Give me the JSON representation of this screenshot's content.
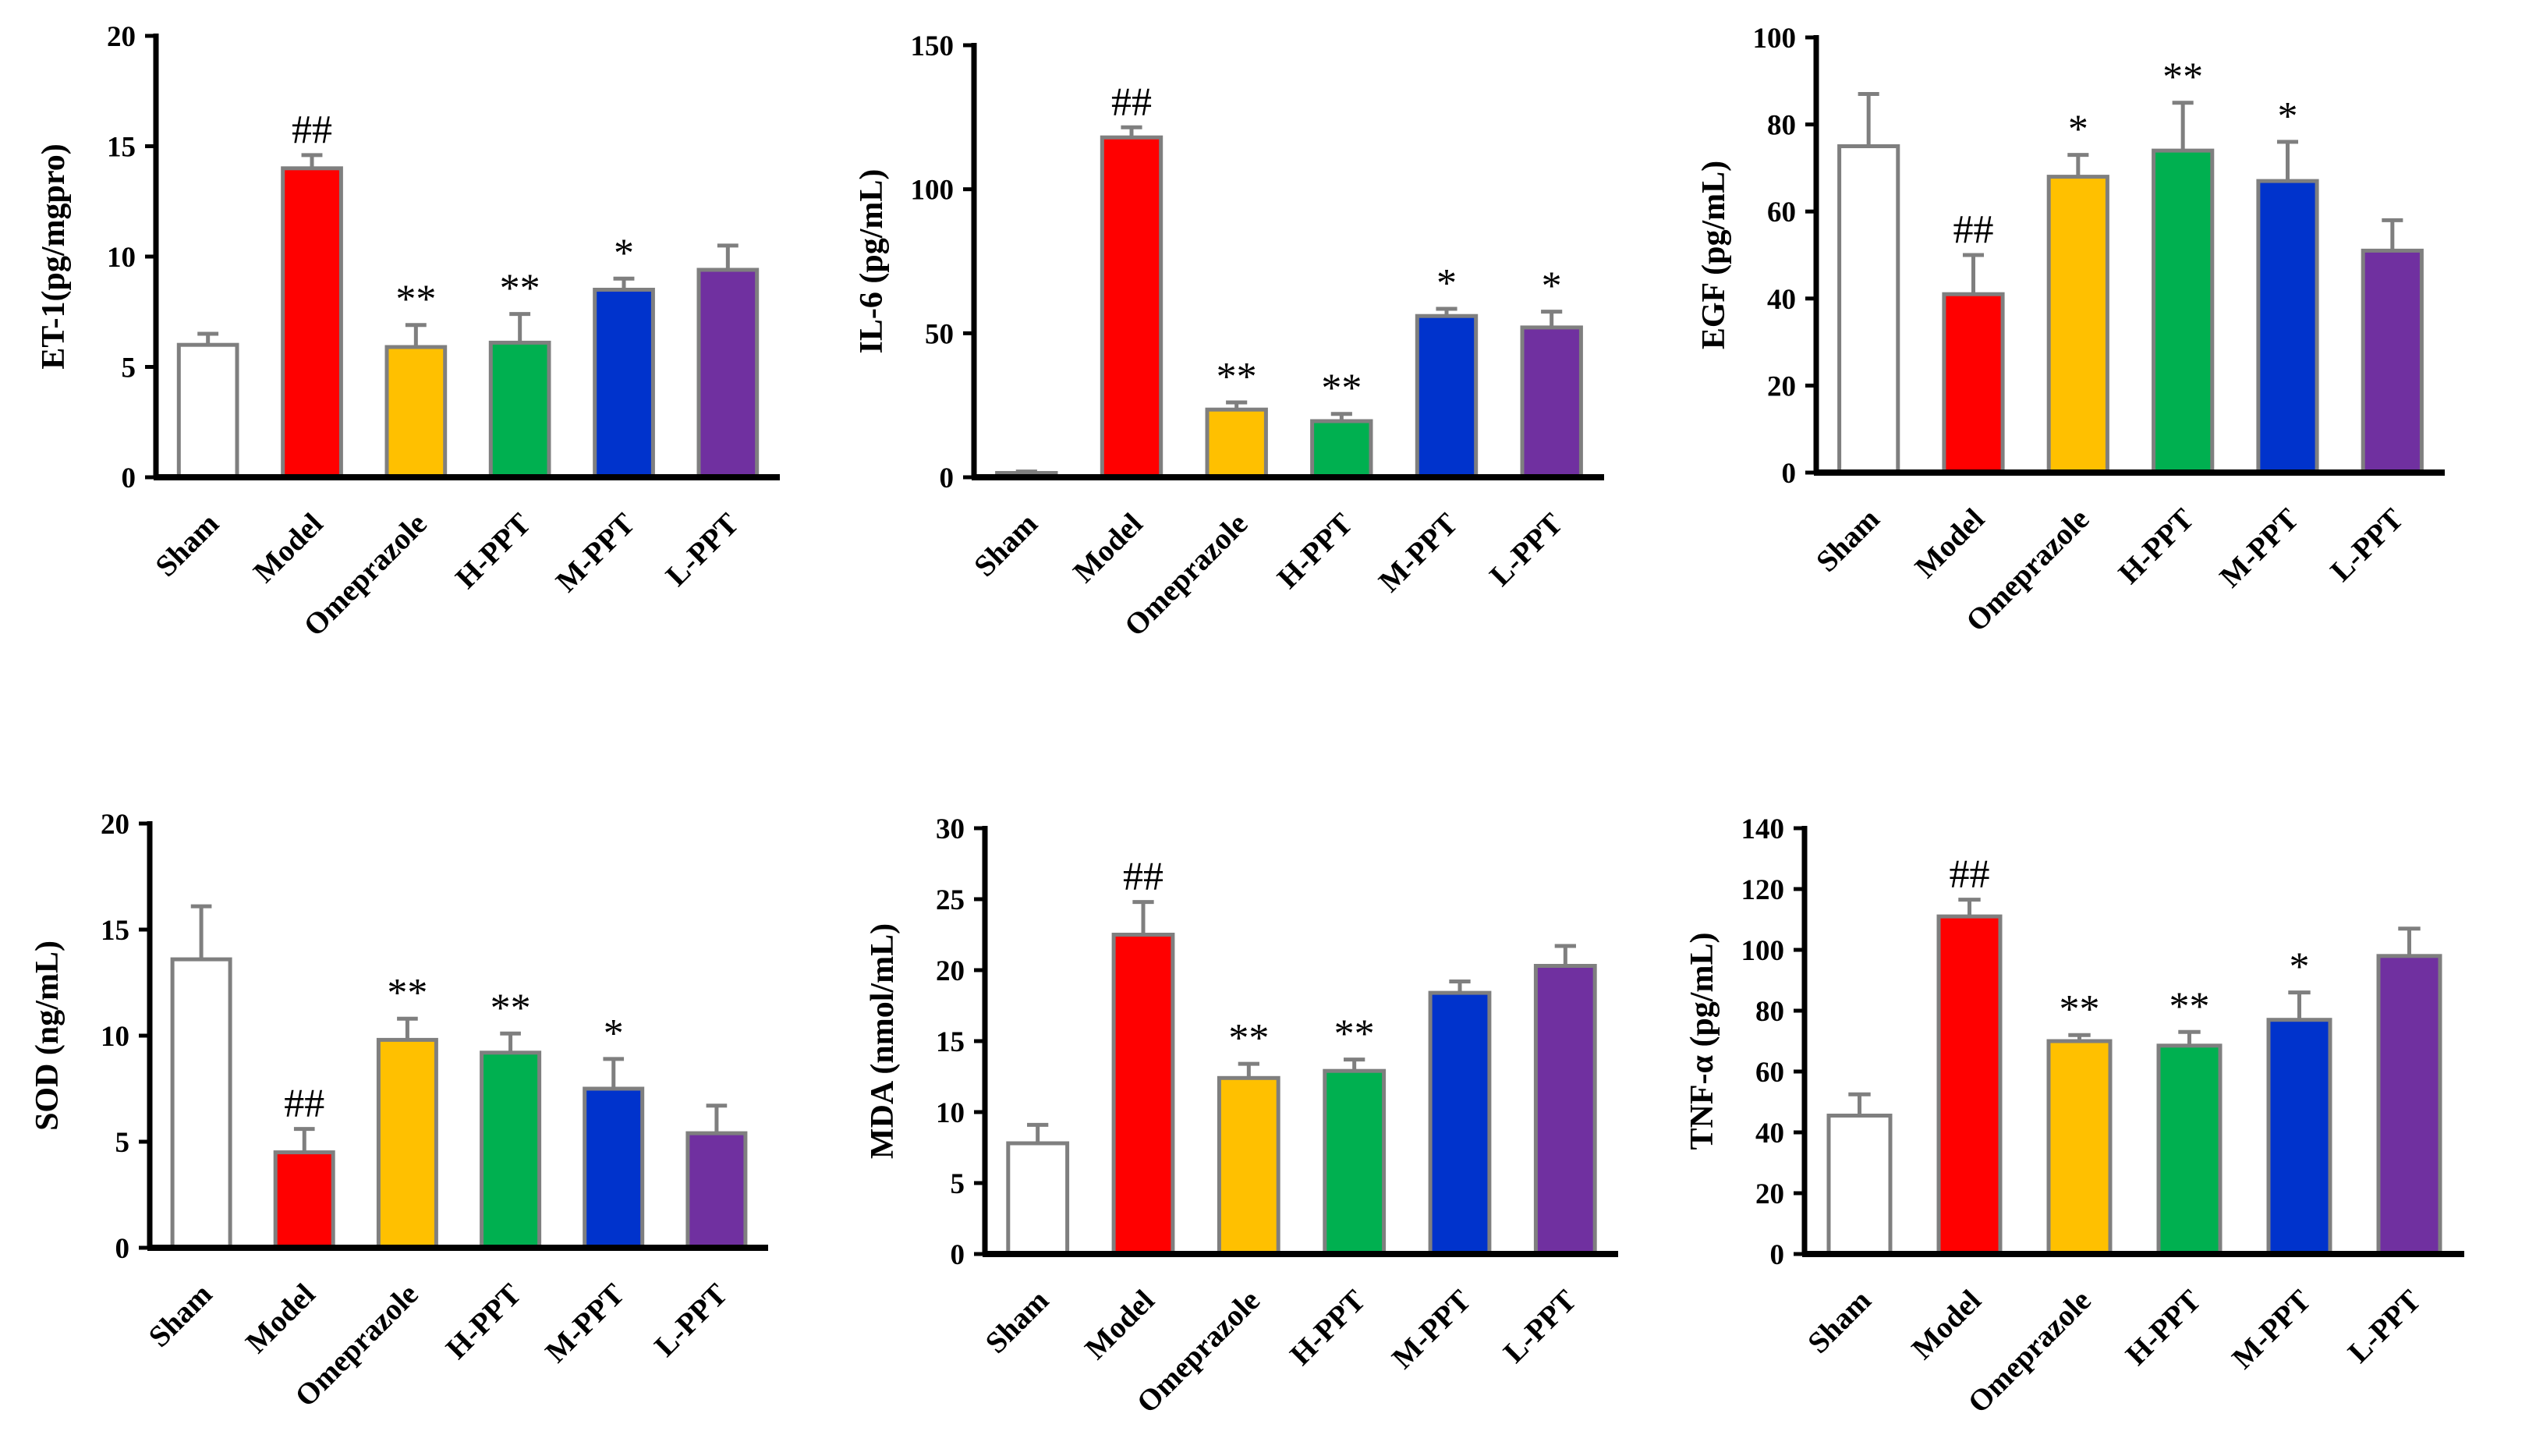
{
  "chart_data": [
    {
      "type": "bar",
      "title": "",
      "xlabel": "",
      "ylabel": "ET-1(pg/mgpro)",
      "ylim": [
        0,
        20
      ],
      "yticks": [
        0,
        5,
        10,
        15,
        20
      ],
      "categories": [
        "Sham",
        "Model",
        "Omeprazole",
        "H-PPT",
        "M-PPT",
        "L-PPT"
      ],
      "values": [
        6.0,
        14.0,
        5.9,
        6.1,
        8.5,
        9.4
      ],
      "errors": [
        0.5,
        0.6,
        1.0,
        1.3,
        0.5,
        1.1
      ],
      "annotations": [
        "",
        "##",
        "**",
        "**",
        "*",
        ""
      ],
      "colors": [
        "#ffffff",
        "#ff0000",
        "#ffc000",
        "#00b050",
        "#0033cc",
        "#7030a0"
      ]
    },
    {
      "type": "bar",
      "title": "",
      "xlabel": "",
      "ylabel": "IL-6 (pg/mL)",
      "ylim": [
        0,
        150
      ],
      "yticks": [
        0,
        50,
        100,
        150
      ],
      "categories": [
        "Sham",
        "Model",
        "Omeprazole",
        "H-PPT",
        "M-PPT",
        "L-PPT"
      ],
      "values": [
        1.5,
        118,
        23.5,
        19.5,
        56,
        52
      ],
      "errors": [
        0.5,
        3.5,
        2.5,
        2.5,
        2.5,
        5.5
      ],
      "annotations": [
        "",
        "##",
        "**",
        "**",
        "*",
        "*"
      ],
      "colors": [
        "#ffffff",
        "#ff0000",
        "#ffc000",
        "#00b050",
        "#0033cc",
        "#7030a0"
      ]
    },
    {
      "type": "bar",
      "title": "",
      "xlabel": "",
      "ylabel": "EGF (pg/mL)",
      "ylim": [
        0,
        100
      ],
      "yticks": [
        0,
        20,
        40,
        60,
        80,
        100
      ],
      "categories": [
        "Sham",
        "Model",
        "Omeprazole",
        "H-PPT",
        "M-PPT",
        "L-PPT"
      ],
      "values": [
        75,
        41,
        68,
        74,
        67,
        51
      ],
      "errors": [
        12,
        9,
        5,
        11,
        9,
        7
      ],
      "annotations": [
        "",
        "##",
        "*",
        "**",
        "*",
        ""
      ],
      "colors": [
        "#ffffff",
        "#ff0000",
        "#ffc000",
        "#00b050",
        "#0033cc",
        "#7030a0"
      ]
    },
    {
      "type": "bar",
      "title": "",
      "xlabel": "",
      "ylabel": "SOD (ng/mL)",
      "ylim": [
        0,
        20
      ],
      "yticks": [
        0,
        5,
        10,
        15,
        20
      ],
      "categories": [
        "Sham",
        "Model",
        "Omeprazole",
        "H-PPT",
        "M-PPT",
        "L-PPT"
      ],
      "values": [
        13.6,
        4.5,
        9.8,
        9.2,
        7.5,
        5.4
      ],
      "errors": [
        2.5,
        1.1,
        1.0,
        0.9,
        1.4,
        1.3
      ],
      "annotations": [
        "",
        "##",
        "**",
        "**",
        "*",
        ""
      ],
      "colors": [
        "#ffffff",
        "#ff0000",
        "#ffc000",
        "#00b050",
        "#0033cc",
        "#7030a0"
      ]
    },
    {
      "type": "bar",
      "title": "",
      "xlabel": "",
      "ylabel": "MDA (nmol/mL)",
      "ylim": [
        0,
        30
      ],
      "yticks": [
        0,
        5,
        10,
        15,
        20,
        25,
        30
      ],
      "categories": [
        "Sham",
        "Model",
        "Omeprazole",
        "H-PPT",
        "M-PPT",
        "L-PPT"
      ],
      "values": [
        7.8,
        22.5,
        12.4,
        12.9,
        18.4,
        20.3
      ],
      "errors": [
        1.3,
        2.3,
        1.0,
        0.8,
        0.8,
        1.4
      ],
      "annotations": [
        "",
        "##",
        "**",
        "**",
        "",
        ""
      ],
      "colors": [
        "#ffffff",
        "#ff0000",
        "#ffc000",
        "#00b050",
        "#0033cc",
        "#7030a0"
      ]
    },
    {
      "type": "bar",
      "title": "",
      "xlabel": "",
      "ylabel": "TNF-α (pg/mL)",
      "ylim": [
        0,
        140
      ],
      "yticks": [
        0,
        20,
        40,
        60,
        80,
        100,
        120,
        140
      ],
      "categories": [
        "Sham",
        "Model",
        "Omeprazole",
        "H-PPT",
        "M-PPT",
        "L-PPT"
      ],
      "values": [
        45.5,
        111,
        70,
        68.5,
        77,
        98
      ],
      "errors": [
        7,
        5.5,
        2,
        4.5,
        9,
        9
      ],
      "annotations": [
        "",
        "##",
        "**",
        "**",
        "*",
        ""
      ],
      "colors": [
        "#ffffff",
        "#ff0000",
        "#ffc000",
        "#00b050",
        "#0033cc",
        "#7030a0"
      ]
    }
  ]
}
